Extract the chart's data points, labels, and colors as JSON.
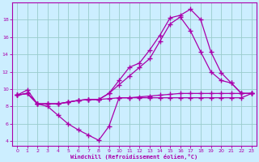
{
  "background_color": "#cceeff",
  "grid_color": "#99cccc",
  "line_color": "#aa00aa",
  "marker": "+",
  "marker_size": 4,
  "marker_lw": 1.0,
  "line_width": 0.9,
  "xlim": [
    -0.5,
    23.5
  ],
  "ylim": [
    3.5,
    20
  ],
  "xticks": [
    0,
    1,
    2,
    3,
    4,
    5,
    6,
    7,
    8,
    9,
    10,
    11,
    12,
    13,
    14,
    15,
    16,
    17,
    18,
    19,
    20,
    21,
    22,
    23
  ],
  "yticks": [
    4,
    6,
    8,
    10,
    12,
    14,
    16,
    18
  ],
  "xlabel": "Windchill (Refroidissement éolien,°C)",
  "series": [
    {
      "x": [
        0,
        1,
        2,
        3,
        4,
        5,
        6,
        7,
        8,
        9,
        10,
        11,
        12,
        13,
        14,
        15,
        16,
        17,
        18,
        19,
        20,
        21,
        22,
        23
      ],
      "y": [
        9.3,
        9.9,
        8.3,
        8.0,
        7.0,
        6.0,
        5.3,
        4.7,
        4.1,
        5.7,
        9.0,
        9.0,
        9.0,
        9.0,
        9.0,
        9.0,
        9.0,
        9.0,
        9.0,
        9.0,
        9.0,
        9.0,
        9.0,
        9.5
      ]
    },
    {
      "x": [
        0,
        1,
        2,
        3,
        4,
        5,
        6,
        7,
        8,
        9,
        10,
        11,
        12,
        13,
        14,
        15,
        16,
        17,
        18,
        19,
        20,
        21,
        22,
        23
      ],
      "y": [
        9.3,
        9.5,
        8.3,
        8.3,
        8.3,
        8.5,
        8.7,
        8.8,
        8.8,
        8.9,
        9.0,
        9.0,
        9.1,
        9.2,
        9.3,
        9.4,
        9.5,
        9.5,
        9.5,
        9.5,
        9.5,
        9.5,
        9.5,
        9.5
      ]
    },
    {
      "x": [
        0,
        1,
        2,
        3,
        4,
        5,
        6,
        7,
        8,
        9,
        10,
        11,
        12,
        13,
        14,
        15,
        16,
        17,
        18,
        19,
        20,
        21,
        22,
        23
      ],
      "y": [
        9.3,
        9.5,
        8.3,
        8.3,
        8.3,
        8.5,
        8.7,
        8.8,
        8.8,
        9.5,
        10.5,
        11.5,
        12.5,
        13.5,
        15.5,
        17.5,
        18.3,
        16.7,
        14.3,
        12.0,
        11.0,
        10.7,
        9.5,
        9.5
      ]
    },
    {
      "x": [
        0,
        1,
        2,
        3,
        4,
        5,
        6,
        7,
        8,
        9,
        10,
        11,
        12,
        13,
        14,
        15,
        16,
        17,
        18,
        19,
        20,
        21,
        22,
        23
      ],
      "y": [
        9.3,
        9.5,
        8.3,
        8.3,
        8.3,
        8.5,
        8.7,
        8.8,
        8.8,
        9.5,
        11.0,
        12.5,
        13.0,
        14.5,
        16.2,
        18.2,
        18.5,
        19.2,
        18.0,
        14.3,
        11.9,
        10.7,
        9.5,
        9.5
      ]
    }
  ]
}
